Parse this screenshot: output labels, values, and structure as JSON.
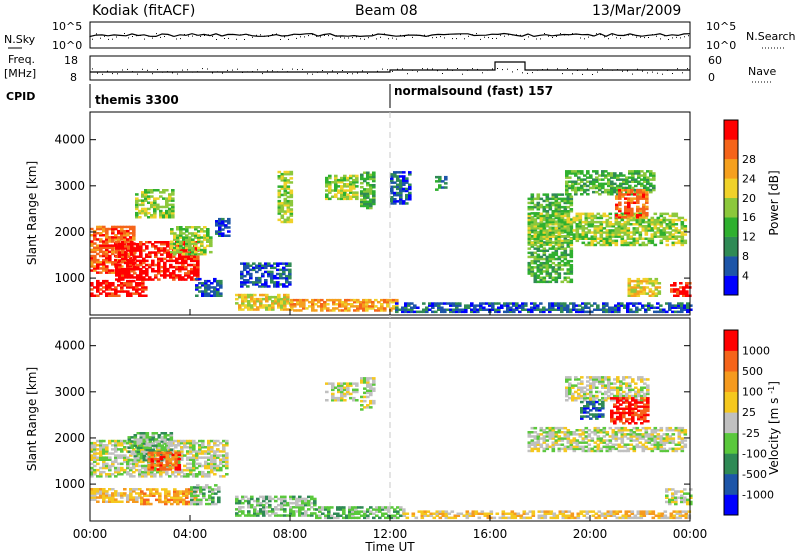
{
  "header": {
    "radar": "Kodiak (fitACF)",
    "beam": "Beam 08",
    "date": "13/Mar/2009"
  },
  "status_panel": {
    "left_top_label": "N.Sky",
    "left_top_ticks": [
      "10^5",
      "10^0"
    ],
    "right_top_label": "N.Search",
    "right_top_ticks": [
      "10^5",
      "10^0"
    ],
    "freq_label_line1": "Freq.",
    "freq_label_line2": "[MHz]",
    "freq_ticks": [
      "18",
      "8"
    ],
    "nave_label": "Nave",
    "nave_ticks": [
      "60",
      "0"
    ],
    "cpid_label": "CPID",
    "cpid_segments": [
      {
        "label": "themis 3300",
        "start_hour": 0
      },
      {
        "label": "normalsound (fast) 157",
        "start_hour": 12
      }
    ]
  },
  "chart_data": [
    {
      "type": "heatmap",
      "quantity": "power",
      "ylabel": "Slant Range [km]",
      "ylim": [
        200,
        4600
      ],
      "yticks": [
        1000,
        2000,
        3000,
        4000
      ],
      "xlim": [
        0,
        24
      ],
      "colorbar": {
        "label": "Power [dB]",
        "range": [
          0,
          32
        ],
        "ticks": [
          "28",
          "24",
          "20",
          "16",
          "12",
          "8",
          "4"
        ],
        "colors": [
          "#0000ff",
          "#1d55a8",
          "#2f8a55",
          "#2fb02f",
          "#8cc83c",
          "#f0d22a",
          "#f5a01e",
          "#f5641a",
          "#ff0000"
        ]
      },
      "regions": [
        {
          "t0": 0.0,
          "t1": 2.2,
          "r0": 600,
          "r1": 950,
          "level": 8
        },
        {
          "t0": 0.0,
          "t1": 1.8,
          "r0": 1100,
          "r1": 2100,
          "level": 7
        },
        {
          "t0": 1.0,
          "t1": 4.3,
          "r0": 950,
          "r1": 1800,
          "level": 8
        },
        {
          "t0": 3.2,
          "t1": 4.8,
          "r0": 1500,
          "r1": 2100,
          "level": 4
        },
        {
          "t0": 1.8,
          "t1": 3.3,
          "r0": 2300,
          "r1": 2900,
          "level": 4
        },
        {
          "t0": 4.2,
          "t1": 5.2,
          "r0": 600,
          "r1": 1000,
          "level": 1
        },
        {
          "t0": 5.0,
          "t1": 5.6,
          "r0": 1900,
          "r1": 2300,
          "level": 1
        },
        {
          "t0": 5.8,
          "t1": 8.0,
          "r0": 300,
          "r1": 650,
          "level": 5
        },
        {
          "t0": 8.0,
          "t1": 12.2,
          "r0": 280,
          "r1": 520,
          "level": 6
        },
        {
          "t0": 12.2,
          "t1": 24.0,
          "r0": 250,
          "r1": 450,
          "level": 1
        },
        {
          "t0": 6.0,
          "t1": 8.0,
          "r0": 800,
          "r1": 1300,
          "level": 1
        },
        {
          "t0": 7.5,
          "t1": 8.0,
          "r0": 2200,
          "r1": 3300,
          "level": 4
        },
        {
          "t0": 9.4,
          "t1": 10.6,
          "r0": 2700,
          "r1": 3200,
          "level": 4
        },
        {
          "t0": 10.8,
          "t1": 11.3,
          "r0": 2500,
          "r1": 3300,
          "level": 3
        },
        {
          "t0": 12.0,
          "t1": 12.8,
          "r0": 2600,
          "r1": 3300,
          "level": 1
        },
        {
          "t0": 13.8,
          "t1": 14.2,
          "r0": 2900,
          "r1": 3300,
          "level": 2
        },
        {
          "t0": 17.5,
          "t1": 19.2,
          "r0": 900,
          "r1": 2800,
          "level": 3
        },
        {
          "t0": 17.5,
          "t1": 23.8,
          "r0": 1700,
          "r1": 2400,
          "level": 4
        },
        {
          "t0": 19.0,
          "t1": 22.5,
          "r0": 2800,
          "r1": 3300,
          "level": 3
        },
        {
          "t0": 21.0,
          "t1": 22.3,
          "r0": 2300,
          "r1": 2900,
          "level": 7
        },
        {
          "t0": 23.2,
          "t1": 24.0,
          "r0": 600,
          "r1": 900,
          "level": 8
        },
        {
          "t0": 21.5,
          "t1": 22.8,
          "r0": 600,
          "r1": 1000,
          "level": 5
        }
      ]
    },
    {
      "type": "heatmap",
      "quantity": "velocity",
      "ylabel": "Slant Range [km]",
      "ylim": [
        200,
        4600
      ],
      "yticks": [
        1000,
        2000,
        3000,
        4000
      ],
      "xlim": [
        0,
        24
      ],
      "xticks": [
        "00:00",
        "04:00",
        "08:00",
        "12:00",
        "16:00",
        "20:00",
        "00:00"
      ],
      "xlabel": "Time UT",
      "colorbar": {
        "label": "Velocity [m s^-1]",
        "ticks": [
          "1000",
          "500",
          "100",
          "25",
          "-25",
          "-100",
          "-500",
          "-1000"
        ],
        "colors": [
          "#0000ff",
          "#1d55a8",
          "#2f8a55",
          "#5ac83c",
          "#c0c0c0",
          "#f5c81e",
          "#f59a1e",
          "#f5641a",
          "#ff0000"
        ]
      },
      "regions": [
        {
          "t0": 0.0,
          "t1": 2.0,
          "r0": 600,
          "r1": 900,
          "level": 5
        },
        {
          "t0": 2.0,
          "t1": 4.2,
          "r0": 550,
          "r1": 900,
          "level": 6
        },
        {
          "t0": 0.0,
          "t1": 5.5,
          "r0": 1150,
          "r1": 1950,
          "level": 4
        },
        {
          "t0": 1.5,
          "t1": 3.2,
          "r0": 1500,
          "r1": 2100,
          "level": 3
        },
        {
          "t0": 2.3,
          "t1": 3.6,
          "r0": 1300,
          "r1": 1700,
          "level": 7
        },
        {
          "t0": 4.0,
          "t1": 5.2,
          "r0": 550,
          "r1": 1000,
          "level": 3
        },
        {
          "t0": 5.8,
          "t1": 9.0,
          "r0": 300,
          "r1": 750,
          "level": 3
        },
        {
          "t0": 9.0,
          "t1": 12.5,
          "r0": 250,
          "r1": 500,
          "level": 3
        },
        {
          "t0": 12.5,
          "t1": 24.0,
          "r0": 250,
          "r1": 420,
          "level": 5
        },
        {
          "t0": 9.4,
          "t1": 10.6,
          "r0": 2800,
          "r1": 3200,
          "level": 4
        },
        {
          "t0": 10.8,
          "t1": 11.3,
          "r0": 2600,
          "r1": 3300,
          "level": 4
        },
        {
          "t0": 17.5,
          "t1": 23.8,
          "r0": 1700,
          "r1": 2200,
          "level": 4
        },
        {
          "t0": 19.0,
          "t1": 22.3,
          "r0": 2800,
          "r1": 3300,
          "level": 4
        },
        {
          "t0": 20.8,
          "t1": 22.3,
          "r0": 2300,
          "r1": 2850,
          "level": 8
        },
        {
          "t0": 19.6,
          "t1": 20.5,
          "r0": 2400,
          "r1": 2800,
          "level": 1
        },
        {
          "t0": 23.0,
          "t1": 24.0,
          "r0": 550,
          "r1": 900,
          "level": 4
        }
      ]
    }
  ]
}
